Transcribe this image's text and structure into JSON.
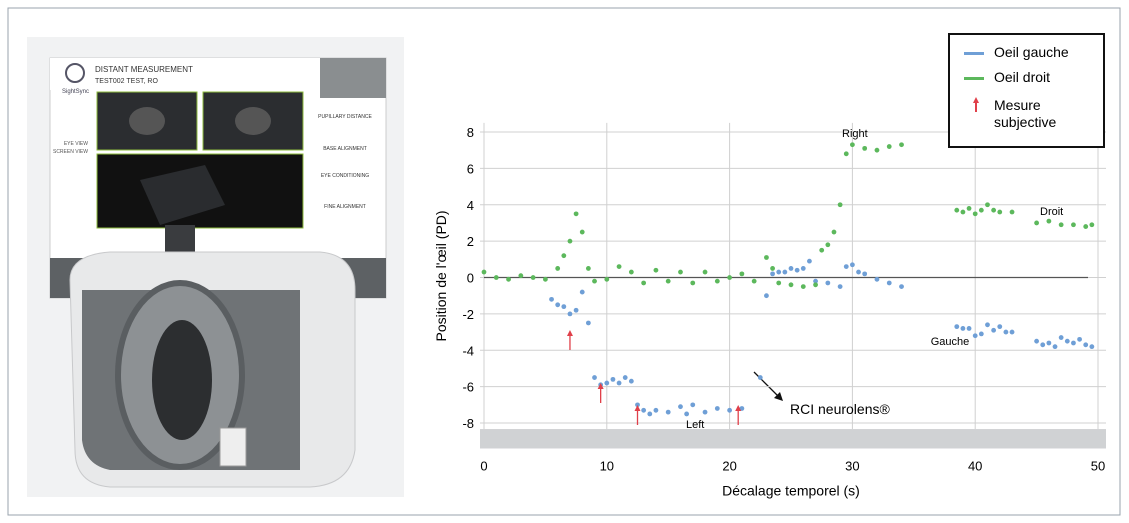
{
  "photo": {
    "screen_title": "DISTANT MEASUREMENT",
    "screen_subtitle": "TEST002 TEST, RO",
    "brand": "SightSync",
    "eye_view": "EYE VIEW",
    "screen_view": "SCREEN VIEW",
    "steps": [
      "PUPILLARY DISTANCE",
      "BASE ALIGNMENT",
      "EYE CONDITIONING",
      "FINE ALIGNMENT"
    ]
  },
  "chart_data": {
    "type": "scatter",
    "x_label": "Décalage temporel (s)",
    "y_label": "Position de l'œil (PD)",
    "xlim": [
      0,
      50
    ],
    "xticks": [
      0,
      10,
      20,
      30,
      40,
      50
    ],
    "ylim": [
      -9.4,
      8.5
    ],
    "yticks": [
      -8,
      -6,
      -4,
      -2,
      0,
      2,
      4,
      6,
      8
    ],
    "grid": true,
    "legend": "upper right",
    "series": [
      {
        "name": "Oeil gauche",
        "color": "#6f9fd6",
        "x": [
          5.5,
          6,
          6.5,
          7,
          7.5,
          8,
          8.5,
          9,
          9.5,
          10,
          10.5,
          11,
          11.5,
          12,
          12.5,
          13,
          13.5,
          14,
          15,
          16,
          16.5,
          17,
          18,
          19,
          20,
          21,
          22.5,
          23,
          23.5,
          24,
          24.5,
          25,
          25.5,
          26,
          26.5,
          27,
          28,
          29,
          29.5,
          30,
          30.5,
          31,
          32,
          33,
          34,
          38.5,
          39,
          39.5,
          40,
          40.5,
          41,
          41.5,
          42,
          42.5,
          43,
          45,
          45.5,
          46,
          46.5,
          47,
          47.5,
          48,
          48.5,
          49,
          49.5
        ],
        "values": [
          -1.2,
          -1.5,
          -1.6,
          -2.0,
          -1.8,
          -0.8,
          -2.5,
          -5.5,
          -5.9,
          -5.8,
          -5.6,
          -5.8,
          -5.5,
          -5.7,
          -7.0,
          -7.3,
          -7.5,
          -7.3,
          -7.4,
          -7.1,
          -7.5,
          -7.0,
          -7.4,
          -7.2,
          -7.3,
          -7.2,
          -5.5,
          -1.0,
          0.2,
          0.3,
          0.3,
          0.5,
          0.4,
          0.5,
          0.9,
          -0.2,
          -0.3,
          -0.5,
          0.6,
          0.7,
          0.3,
          0.2,
          -0.1,
          -0.3,
          -0.5,
          -2.7,
          -2.8,
          -2.8,
          -3.2,
          -3.1,
          -2.6,
          -2.9,
          -2.7,
          -3.0,
          -3.0,
          -3.5,
          -3.7,
          -3.6,
          -3.8,
          -3.3,
          -3.5,
          -3.6,
          -3.4,
          -3.7,
          -3.8
        ]
      },
      {
        "name": "Oeil droit",
        "color": "#5cb85c",
        "x": [
          0,
          1,
          2,
          3,
          4,
          5,
          6,
          6.5,
          7,
          7.5,
          8,
          8.5,
          9,
          10,
          11,
          12,
          13,
          14,
          15,
          16,
          17,
          18,
          19,
          20,
          21,
          22,
          23,
          23.5,
          24,
          25,
          26,
          27,
          27.5,
          28,
          28.5,
          29,
          29.5,
          30,
          31,
          32,
          33,
          34,
          38.5,
          39,
          39.5,
          40,
          40.5,
          41,
          41.5,
          42,
          43,
          45,
          46,
          47,
          48,
          49,
          49.5
        ],
        "values": [
          0.3,
          0.0,
          -0.1,
          0.1,
          0.0,
          -0.1,
          0.5,
          1.2,
          2.0,
          3.5,
          2.5,
          0.5,
          -0.2,
          -0.1,
          0.6,
          0.3,
          -0.3,
          0.4,
          -0.2,
          0.3,
          -0.3,
          0.3,
          -0.2,
          0.0,
          0.2,
          -0.2,
          1.1,
          0.5,
          -0.3,
          -0.4,
          -0.5,
          -0.4,
          1.5,
          1.8,
          2.5,
          4.0,
          6.8,
          7.3,
          7.1,
          7.0,
          7.2,
          7.3,
          3.7,
          3.6,
          3.8,
          3.5,
          3.7,
          4.0,
          3.7,
          3.6,
          3.6,
          3.0,
          3.1,
          2.9,
          2.9,
          2.8,
          2.9
        ]
      }
    ],
    "arrow_label": "Mesure subjective",
    "arrow_color": "#e0404a",
    "arrows_x": [
      7,
      9.5,
      12.5,
      20.7
    ],
    "annotations": [
      "Right",
      "Left",
      "Droit",
      "Gauche",
      "RCI neurolens®"
    ]
  }
}
